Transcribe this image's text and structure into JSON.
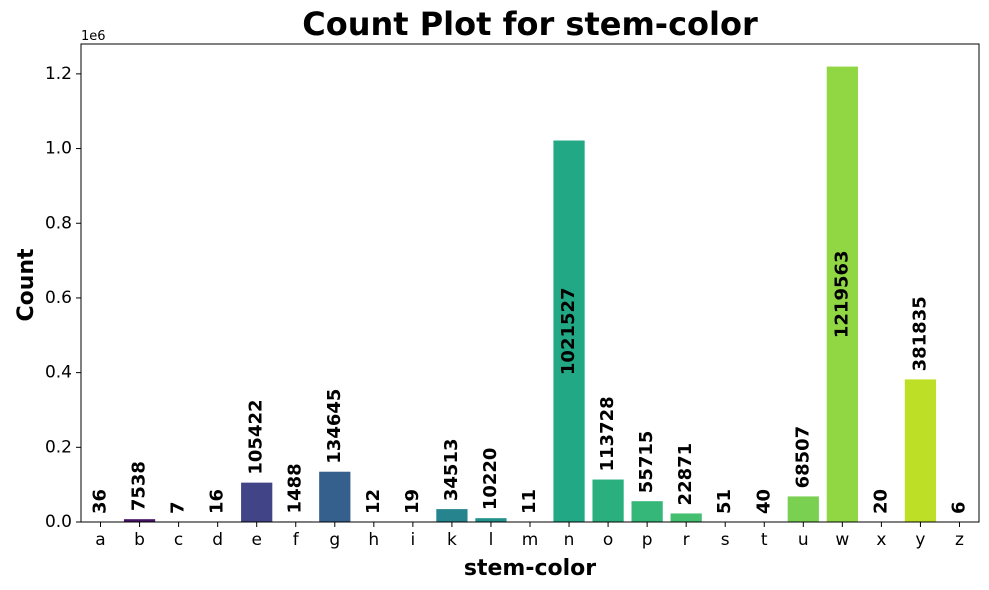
{
  "chart_data": {
    "type": "bar",
    "title": "Count Plot for stem-color",
    "xlabel": "stem-color",
    "ylabel": "Count",
    "y_offset_text": "1e6",
    "ylim": [
      0,
      1280000
    ],
    "y_ticks": [
      0,
      200000,
      400000,
      600000,
      800000,
      1000000,
      1200000
    ],
    "y_tick_labels": [
      "0.0",
      "0.2",
      "0.4",
      "0.6",
      "0.8",
      "1.0",
      "1.2"
    ],
    "grid": false,
    "categories": [
      "a",
      "b",
      "c",
      "d",
      "e",
      "f",
      "g",
      "h",
      "i",
      "k",
      "l",
      "m",
      "n",
      "o",
      "p",
      "r",
      "s",
      "t",
      "u",
      "w",
      "x",
      "y",
      "z"
    ],
    "values": [
      36,
      7538,
      7,
      16,
      105422,
      1488,
      134645,
      12,
      19,
      34513,
      10220,
      11,
      1021527,
      113728,
      55715,
      22871,
      51,
      40,
      68507,
      1219563,
      20,
      381835,
      6
    ],
    "data_labels": [
      "36",
      "7538",
      "7",
      "16",
      "105422",
      "1488",
      "134645",
      "12",
      "19",
      "34513",
      "10220",
      "11",
      "1021527",
      "113728",
      "55715",
      "22871",
      "51",
      "40",
      "68507",
      "1219563",
      "20",
      "381835",
      "6"
    ],
    "palette": "viridis",
    "colors": [
      "#440154",
      "#471365",
      "#482475",
      "#463480",
      "#414487",
      "#3b528b",
      "#355f8d",
      "#2f6c8e",
      "#2a788e",
      "#25848e",
      "#21918c",
      "#1e9c89",
      "#22a884",
      "#2ab07f",
      "#35b779",
      "#44bf70",
      "#54c568",
      "#67cc5c",
      "#7ad151",
      "#90d743",
      "#a5db36",
      "#bddf26",
      "#d2e21b"
    ]
  }
}
